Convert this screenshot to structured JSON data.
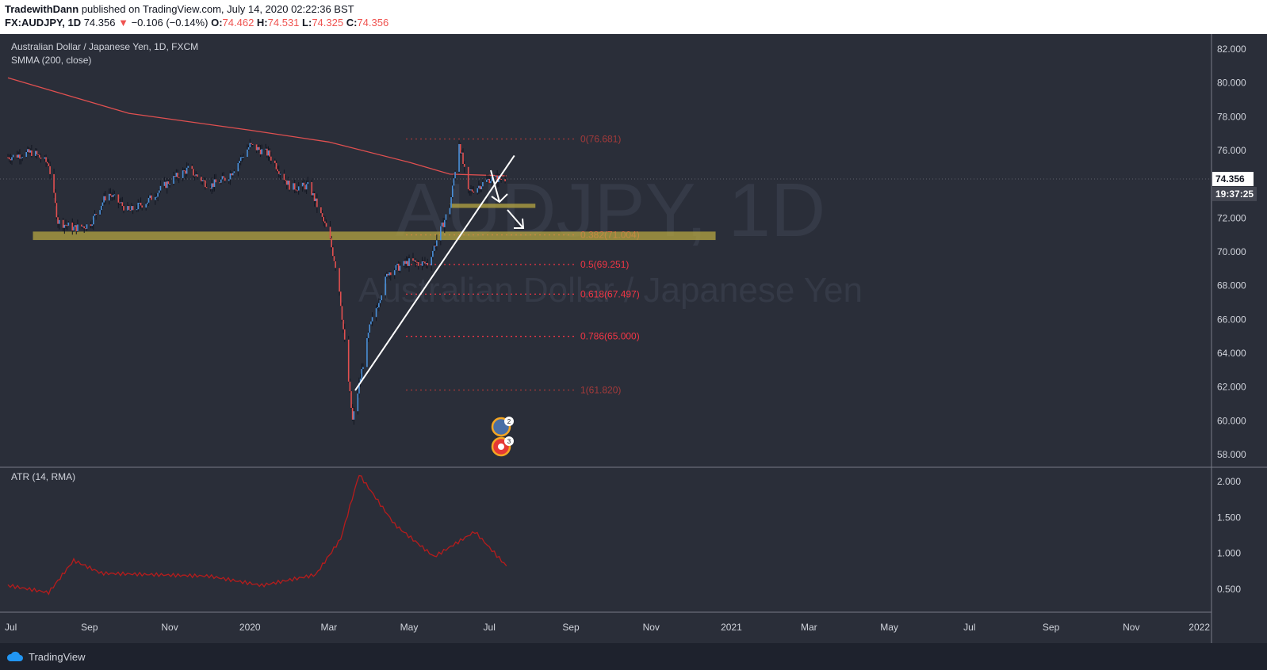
{
  "header": {
    "author": "TradewithDann",
    "publish_text": "published on TradingView.com, July 14, 2020 02:22:36 BST",
    "symbol": "FX:AUDJPY, 1D",
    "last": "74.356",
    "change": "−0.106 (−0.14%)",
    "o_label": "O:",
    "o": "74.462",
    "h_label": "H:",
    "h": "74.531",
    "l_label": "L:",
    "l": "74.325",
    "c_label": "C:",
    "c": "74.356"
  },
  "legend": {
    "title": "Australian Dollar / Japanese Yen, 1D, FXCM",
    "indicator": "SMMA (200, close)",
    "atr": "ATR (14, RMA)"
  },
  "watermark": {
    "symbol": "AUDJPY, 1D",
    "name": "Australian Dollar / Japanese Yen"
  },
  "price_scale": {
    "ticks": [
      "82.000",
      "80.000",
      "78.000",
      "76.000",
      "74.356",
      "72.000",
      "70.000",
      "68.000",
      "66.000",
      "64.000",
      "62.000",
      "60.000",
      "58.000"
    ],
    "last_price": "74.356",
    "countdown": "19:37:25"
  },
  "atr_scale": {
    "ticks": [
      "2.000",
      "1.500",
      "1.000",
      "0.500"
    ]
  },
  "time_axis": [
    "Jul",
    "Sep",
    "Nov",
    "2020",
    "Mar",
    "May",
    "Jul",
    "Sep",
    "Nov",
    "2021",
    "Mar",
    "May",
    "Jul",
    "Sep",
    "Nov",
    "2022"
  ],
  "fib_levels": [
    {
      "label": "0(76.681)",
      "price": 76.681
    },
    {
      "label": "0.382(71.004)",
      "price": 71.004
    },
    {
      "label": "0.5(69.251)",
      "price": 69.251
    },
    {
      "label": "0.618(67.497)",
      "price": 67.497
    },
    {
      "label": "0.786(65.000)",
      "price": 65.0
    },
    {
      "label": "1(61.820)",
      "price": 61.82
    }
  ],
  "events": {
    "badge1": "2",
    "badge2": "3"
  },
  "footer": {
    "brand": "TradingView"
  },
  "colors": {
    "background": "#2a2e39",
    "up": "#4a90d9",
    "down": "#e25050",
    "smma": "#e05050",
    "atr": "#b71c1c",
    "zone": "#b5a642",
    "fib": "#f23645"
  },
  "chart_data": {
    "type": "candlestick",
    "title": "Australian Dollar / Japanese Yen, 1D, FXCM",
    "ylim": [
      58,
      82
    ],
    "x_range": [
      "2019-07",
      "2022-01"
    ],
    "price_path": [
      [
        "2019-07-01",
        75.6
      ],
      [
        "2019-07-20",
        75.9
      ],
      [
        "2019-08-01",
        75.2
      ],
      [
        "2019-08-08",
        71.8
      ],
      [
        "2019-08-20",
        71.4
      ],
      [
        "2019-09-01",
        71.6
      ],
      [
        "2019-09-15",
        73.5
      ],
      [
        "2019-10-01",
        72.4
      ],
      [
        "2019-10-15",
        73.0
      ],
      [
        "2019-11-01",
        74.2
      ],
      [
        "2019-11-15",
        74.9
      ],
      [
        "2019-12-01",
        73.9
      ],
      [
        "2019-12-15",
        74.4
      ],
      [
        "2020-01-01",
        76.3
      ],
      [
        "2020-01-15",
        75.8
      ],
      [
        "2020-02-01",
        73.8
      ],
      [
        "2020-02-15",
        73.9
      ],
      [
        "2020-03-01",
        71.0
      ],
      [
        "2020-03-08",
        68.5
      ],
      [
        "2020-03-19",
        60.0
      ],
      [
        "2020-04-01",
        65.5
      ],
      [
        "2020-04-15",
        68.8
      ],
      [
        "2020-05-01",
        69.4
      ],
      [
        "2020-05-15",
        69.3
      ],
      [
        "2020-06-01",
        72.7
      ],
      [
        "2020-06-08",
        76.5
      ],
      [
        "2020-06-15",
        73.5
      ],
      [
        "2020-07-01",
        74.3
      ],
      [
        "2020-07-14",
        74.356
      ]
    ],
    "series": [
      {
        "name": "SMMA (200, close)",
        "values": [
          [
            "2019-07-01",
            80.3
          ],
          [
            "2019-10-01",
            78.2
          ],
          [
            "2020-01-01",
            77.2
          ],
          [
            "2020-03-01",
            76.5
          ],
          [
            "2020-05-01",
            75.3
          ],
          [
            "2020-06-01",
            74.6
          ],
          [
            "2020-07-14",
            74.5
          ]
        ]
      },
      {
        "name": "ATR (14, RMA)",
        "values": [
          [
            "2019-07-01",
            0.55
          ],
          [
            "2019-08-01",
            0.45
          ],
          [
            "2019-08-20",
            0.9
          ],
          [
            "2019-09-10",
            0.72
          ],
          [
            "2019-12-01",
            0.68
          ],
          [
            "2020-01-10",
            0.55
          ],
          [
            "2020-02-20",
            0.7
          ],
          [
            "2020-03-10",
            1.2
          ],
          [
            "2020-03-24",
            2.1
          ],
          [
            "2020-04-20",
            1.4
          ],
          [
            "2020-05-20",
            0.95
          ],
          [
            "2020-06-20",
            1.3
          ],
          [
            "2020-07-14",
            0.82
          ]
        ]
      }
    ],
    "support_zones": [
      {
        "from": "2019-07-20",
        "to": "2020-12-20",
        "low": 70.7,
        "high": 71.2
      },
      {
        "from": "2020-06-01",
        "to": "2020-08-05",
        "low": 72.6,
        "high": 72.85
      }
    ],
    "trendline": {
      "from": [
        "2020-03-21",
        61.8
      ],
      "to": [
        "2020-07-20",
        75.7
      ]
    },
    "atr_ylim": [
      0.2,
      2.3
    ]
  }
}
